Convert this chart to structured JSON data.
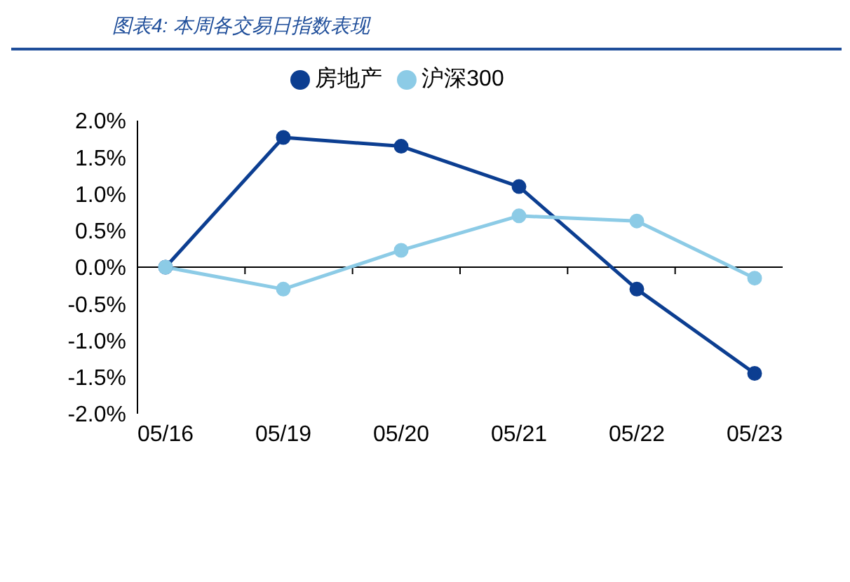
{
  "chart_data": {
    "type": "line",
    "title": "图表4:  本周各交易日指数表现",
    "categories": [
      "05/16",
      "05/19",
      "05/20",
      "05/21",
      "05/22",
      "05/23"
    ],
    "series": [
      {
        "name": "房地产",
        "color": "#0c3e91",
        "values": [
          0,
          1.77,
          1.65,
          1.1,
          -0.3,
          -1.45
        ]
      },
      {
        "name": "沪深300",
        "color": "#8ccbe6",
        "values": [
          0,
          -0.3,
          0.23,
          0.7,
          0.63,
          -0.15
        ]
      }
    ],
    "ylim": [
      -2,
      2
    ],
    "yticks": [
      {
        "value": -2,
        "label": "-2.0%"
      },
      {
        "value": -1.5,
        "label": "-1.5%"
      },
      {
        "value": -1,
        "label": "-1.0%"
      },
      {
        "value": -0.5,
        "label": "-0.5%"
      },
      {
        "value": 0,
        "label": "0.0%"
      },
      {
        "value": 0.5,
        "label": "0.5%"
      },
      {
        "value": 1,
        "label": "1.0%"
      },
      {
        "value": 1.5,
        "label": "1.5%"
      },
      {
        "value": 2,
        "label": "2.0%"
      }
    ],
    "ref_lines": [
      {
        "axis": "y",
        "value": 0,
        "color": "#000000"
      }
    ],
    "grid": false,
    "legend": "top",
    "marker": "circle",
    "line_style": "solid"
  }
}
